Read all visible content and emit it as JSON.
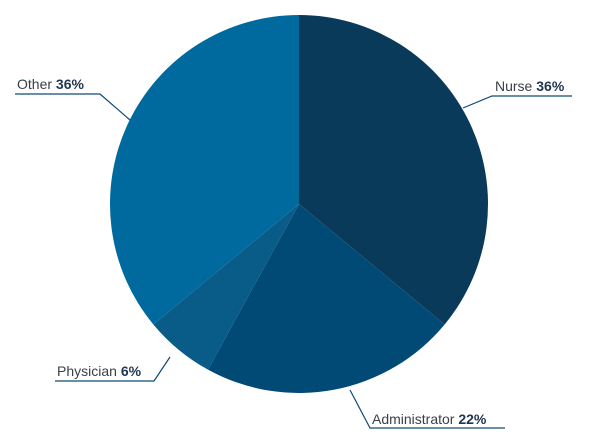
{
  "chart_data": {
    "type": "pie",
    "title": "",
    "slices": [
      {
        "label": "Nurse",
        "value": 36,
        "display": "36%",
        "color": "#0a3a5a"
      },
      {
        "label": "Administrator",
        "value": 22,
        "display": "22%",
        "color": "#004a75"
      },
      {
        "label": "Physician",
        "value": 6,
        "display": "6%",
        "color": "#095b88"
      },
      {
        "label": "Other",
        "value": 36,
        "display": "36%",
        "color": "#006a9e"
      }
    ],
    "start": "top, clockwise",
    "legend": "none (callout labels)"
  },
  "colors": {
    "leader_line": "#0d4a74",
    "label_text": "#3a3f47",
    "value_text": "#1f3550"
  }
}
